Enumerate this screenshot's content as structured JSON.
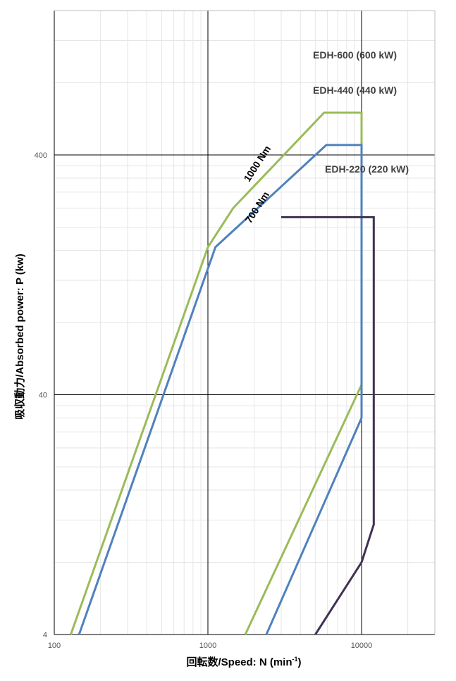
{
  "chart_data": {
    "type": "line",
    "title": "",
    "xlabel": "回転数/Speed: N (min",
    "xlabel_sup": "-1",
    "xlabel_end": ")",
    "ylabel": "吸収動力/Absorbed power: P (kw)",
    "x_scale": "log",
    "y_scale": "log",
    "xlim": [
      100,
      30000
    ],
    "ylim": [
      4,
      1600
    ],
    "x_ticks": [
      100,
      1000,
      10000
    ],
    "x_tick_labels": [
      "100",
      "1000",
      "10000"
    ],
    "y_ticks": [
      4,
      40,
      400
    ],
    "y_tick_labels": [
      "4",
      "40",
      "400"
    ],
    "grid": true,
    "series": [
      {
        "name": "EDH-600 (600 kW)",
        "color": "#9bbb59",
        "outer": [
          [
            128,
            4
          ],
          [
            1000,
            165
          ],
          [
            1460,
            240
          ],
          [
            5700,
            600
          ],
          [
            10000,
            600
          ],
          [
            10000,
            44
          ]
        ],
        "inner": [
          [
            10000,
            44
          ],
          [
            1750,
            4
          ]
        ]
      },
      {
        "name": "EDH-440 (440 kW)",
        "color": "#4f81bd",
        "outer": [
          [
            145,
            4
          ],
          [
            1120,
            165
          ],
          [
            5900,
            440
          ],
          [
            10000,
            440
          ],
          [
            10000,
            32
          ]
        ],
        "inner": [
          [
            10000,
            32
          ],
          [
            2400,
            4
          ]
        ]
      },
      {
        "name": "EDH-220 (220 kW)",
        "color": "#403152",
        "outer": [
          [
            3000,
            220
          ],
          [
            12000,
            220
          ],
          [
            12000,
            11.5
          ],
          [
            10000,
            8
          ]
        ],
        "inner": [
          [
            10000,
            8
          ],
          [
            5000,
            4
          ]
        ]
      }
    ],
    "annotations": [
      {
        "text": "1000 Nm"
      },
      {
        "text": "700 Nm"
      }
    ]
  }
}
